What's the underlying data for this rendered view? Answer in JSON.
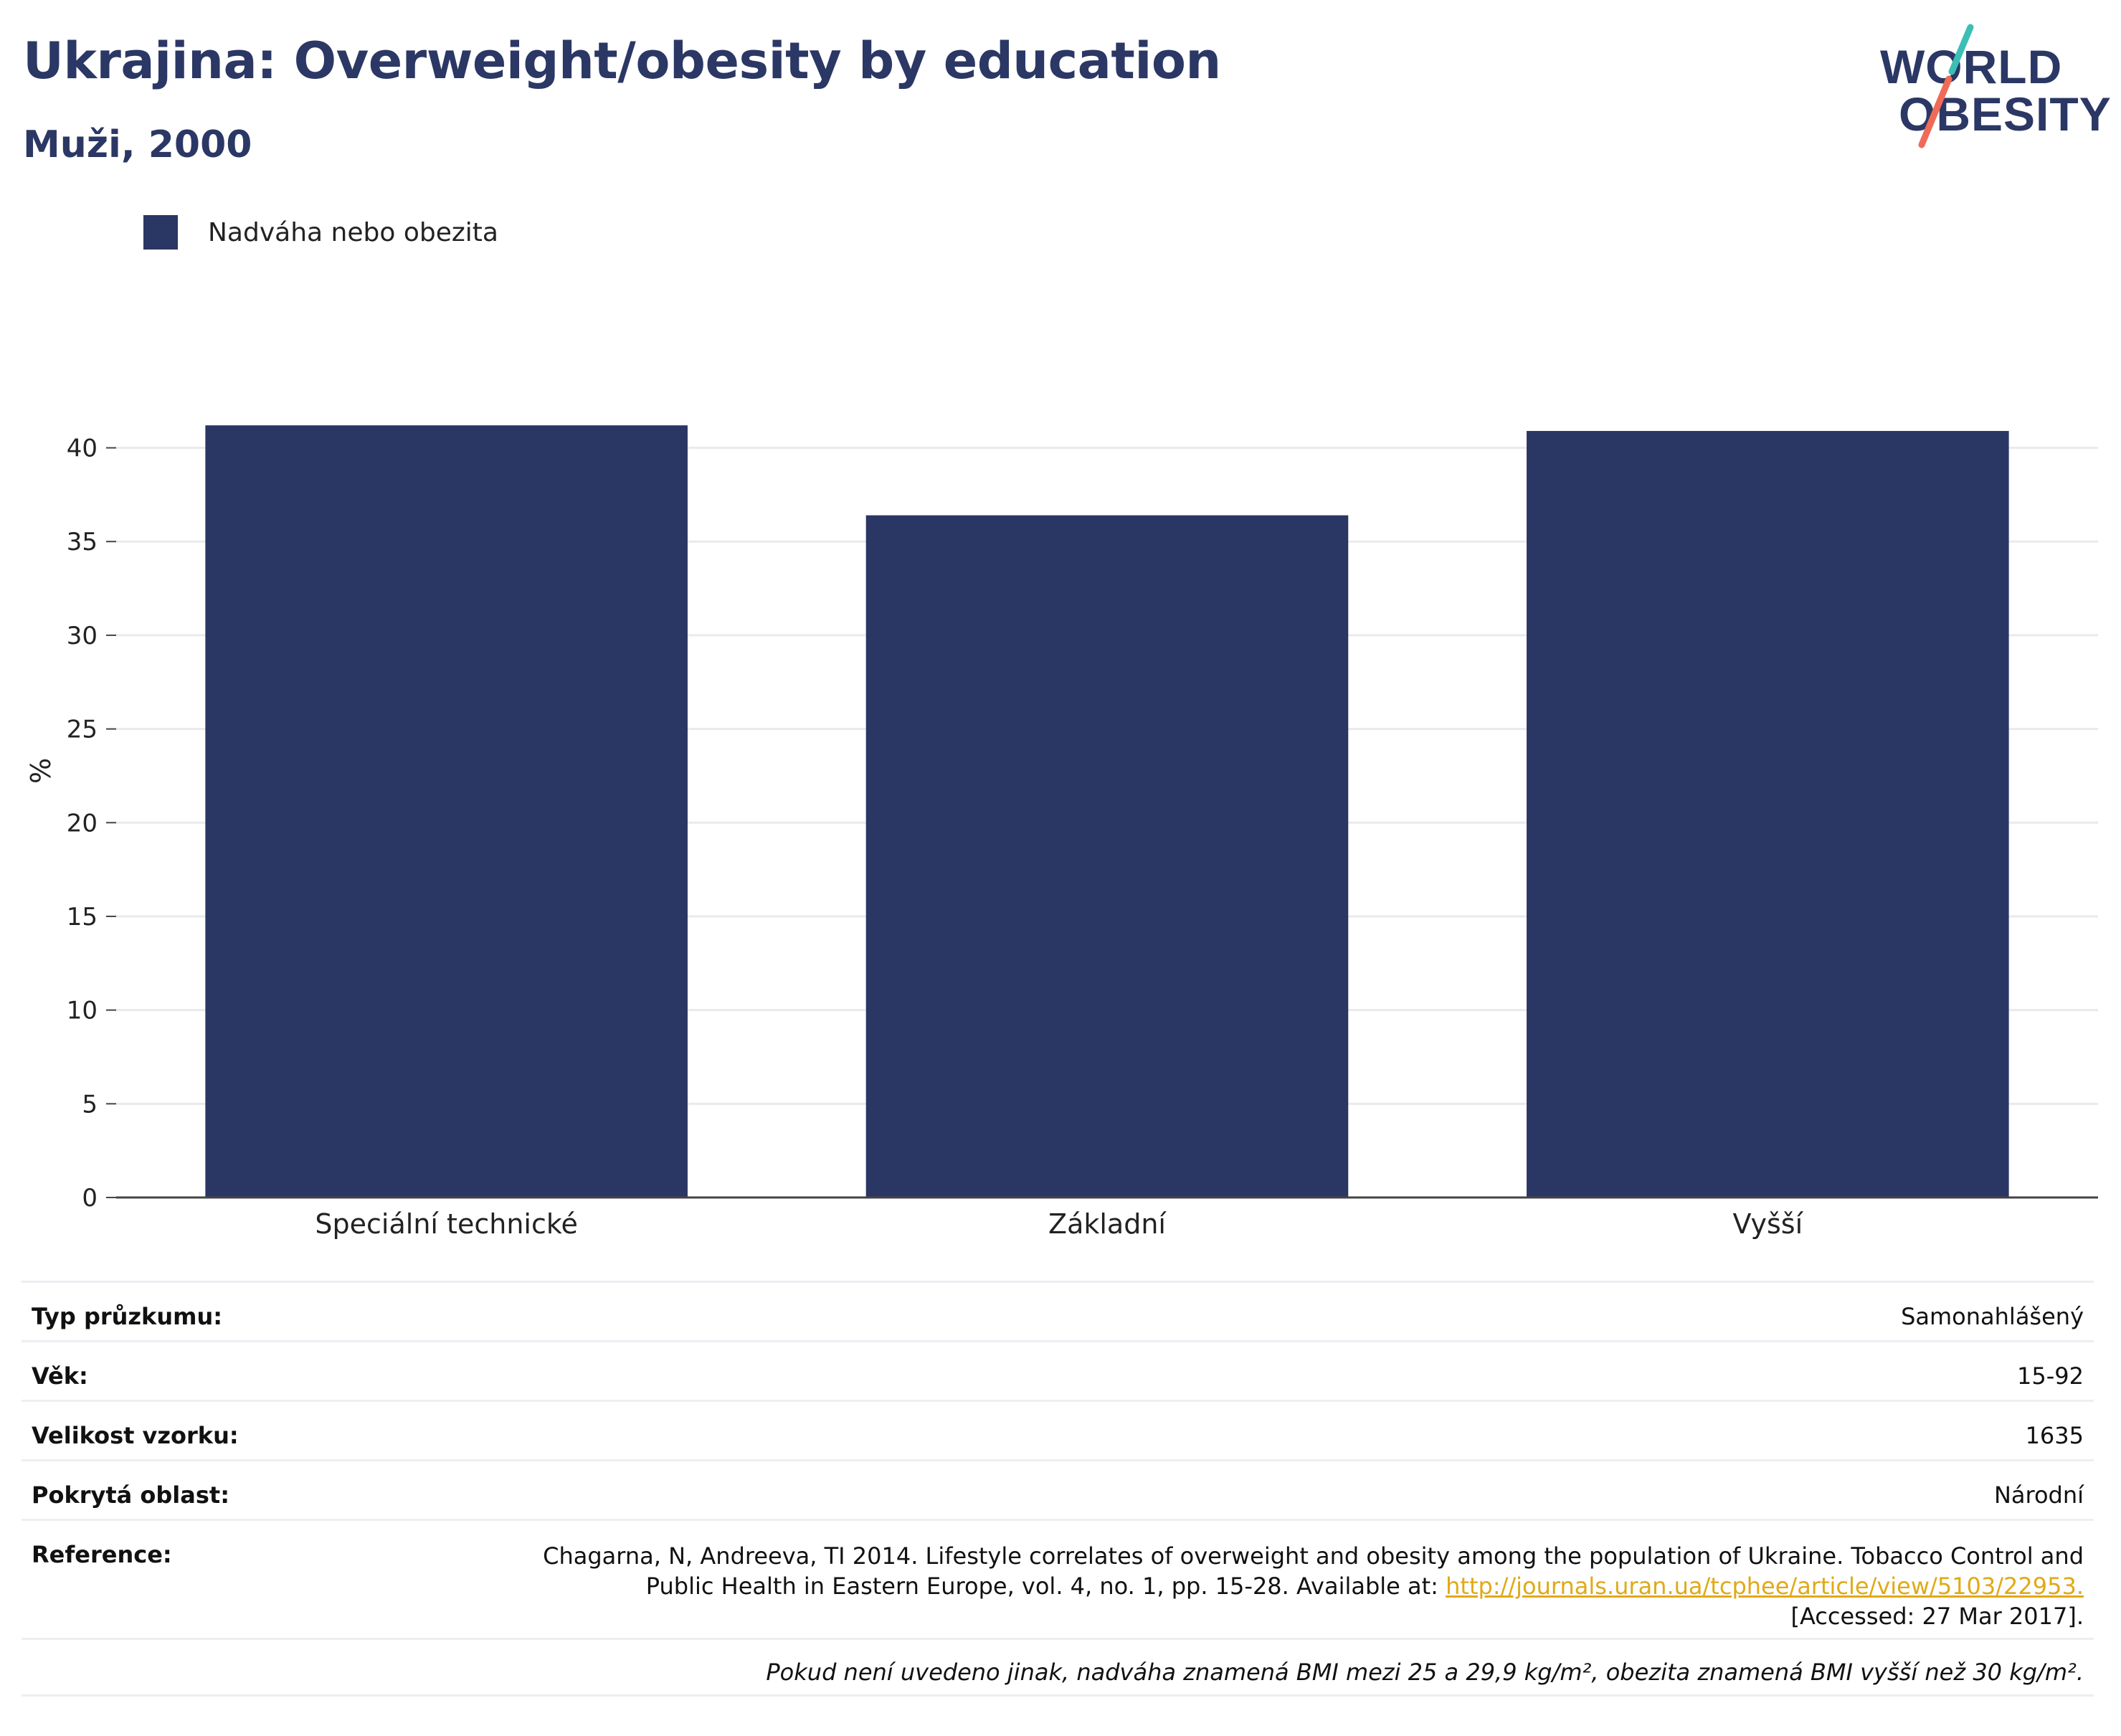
{
  "header": {
    "title": "Ukrajina: Overweight/obesity by education",
    "subtitle": "Muži, 2000"
  },
  "logo": {
    "line1": "WORLD",
    "line2": "OBESITY",
    "accent_teal": "#3bbfb5",
    "accent_coral": "#ef6b57"
  },
  "legend": {
    "label": "Nadváha nebo obezita",
    "color": "#2a3663"
  },
  "chart_data": {
    "type": "bar",
    "title": "Ukrajina: Overweight/obesity by education",
    "subtitle": "Muži, 2000",
    "categories": [
      "Speciální technické",
      "Základní",
      "Vyšší"
    ],
    "series": [
      {
        "name": "Nadváha nebo obezita",
        "values": [
          41.2,
          36.4,
          40.9
        ],
        "color": "#2a3663"
      }
    ],
    "ylabel": "%",
    "xlabel": "",
    "ylim": [
      0,
      44
    ],
    "yticks": [
      0,
      5,
      10,
      15,
      20,
      25,
      30,
      35,
      40
    ],
    "grid": true,
    "legend_position": "top-left"
  },
  "info": {
    "survey_type_label": "Typ průzkumu:",
    "survey_type_value": "Samonahlášený",
    "age_label": "Věk:",
    "age_value": "15-92",
    "sample_size_label": "Velikost vzorku:",
    "sample_size_value": "1635",
    "area_label": "Pokrytá oblast:",
    "area_value": "Národní",
    "reference_label": "Reference:",
    "reference_text_1": "Chagarna, N, Andreeva, TI 2014. Lifestyle correlates of overweight and obesity among the population of Ukraine. Tobacco Control and Public Health in Eastern Europe, vol. 4, no. 1, pp. 15-28. Available at: ",
    "reference_link": "http://journals.uran.ua/tcphee/article/view/5103/22953.",
    "reference_text_2": " [Accessed: 27 Mar 2017].",
    "note": "Pokud není uvedeno jinak, nadváha znamená BMI mezi 25 a 29,9 kg/m², obezita znamená BMI vyšší než 30 kg/m²."
  }
}
